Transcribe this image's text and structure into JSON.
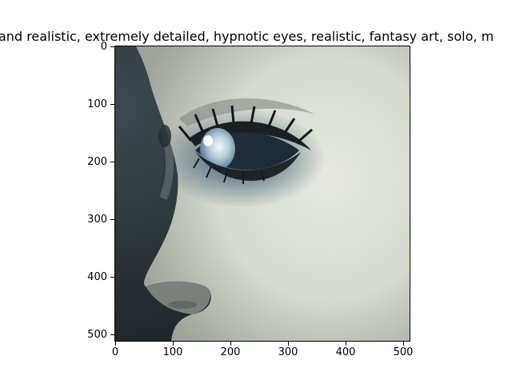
{
  "title": "and realistic, extremely detailed, hypnotic eyes, realistic, fantasy art, solo, m",
  "x_ticks": [
    "0",
    "100",
    "200",
    "300",
    "400",
    "500"
  ],
  "y_ticks": [
    "0",
    "100",
    "200",
    "300",
    "400",
    "500"
  ],
  "image": {
    "subject": "close-up profile of a pale face with a glowing blue eye",
    "colors": {
      "background_dark": "#2d3539",
      "skin_light": "#d9ddd1",
      "skin_shadow": "#8f948d",
      "eye_blue": "#6f98b6",
      "lash_dark": "#1b1f24"
    }
  }
}
